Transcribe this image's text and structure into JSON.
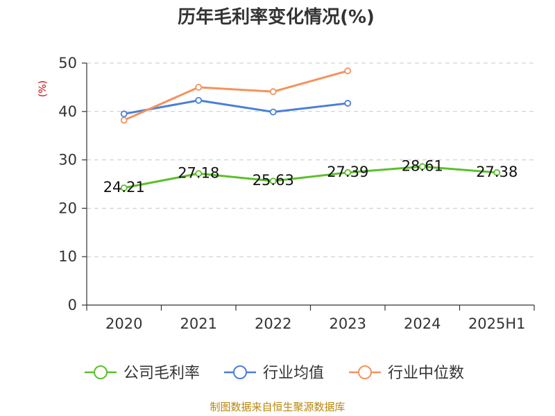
{
  "chart_data": {
    "type": "line",
    "title": "历年毛利率变化情况(%)",
    "ylabel": "(%)",
    "xlabel": "",
    "categories": [
      "2020",
      "2021",
      "2022",
      "2023",
      "2024",
      "2025H1"
    ],
    "ylim": [
      0,
      50
    ],
    "yticks": [
      0,
      10,
      20,
      30,
      40,
      50
    ],
    "grid": "horizontal-dashed",
    "legend_position": "bottom",
    "series": [
      {
        "name": "公司毛利率",
        "color": "#5cbf2a",
        "values": [
          24.21,
          27.18,
          25.63,
          27.39,
          28.61,
          27.38
        ],
        "labels": [
          "24.21",
          "27.18",
          "25.63",
          "27.39",
          "28.61",
          "27.38"
        ]
      },
      {
        "name": "行业均值",
        "color": "#4a7fd6",
        "values": [
          39.5,
          42.3,
          39.9,
          41.7,
          null,
          null
        ]
      },
      {
        "name": "行业中位数",
        "color": "#f4925c",
        "values": [
          38.2,
          45.0,
          44.1,
          48.4,
          null,
          null
        ]
      }
    ]
  },
  "source_text": "制图数据来自恒生聚源数据库"
}
